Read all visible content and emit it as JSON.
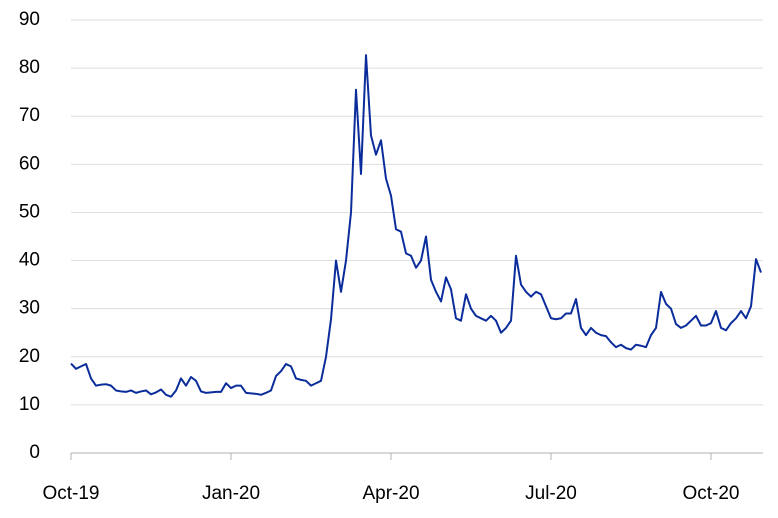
{
  "chart_data": {
    "type": "line",
    "categories": [
      "Oct-19",
      null,
      null,
      null,
      null,
      null,
      null,
      null,
      null,
      null,
      null,
      null,
      null,
      null,
      null,
      null,
      null,
      null,
      null,
      null,
      null,
      null,
      null,
      null,
      null,
      null,
      null,
      null,
      null,
      null,
      null,
      null,
      "Jan-20",
      null,
      null,
      null,
      null,
      null,
      null,
      null,
      null,
      null,
      null,
      null,
      null,
      null,
      null,
      null,
      null,
      null,
      null,
      null,
      null,
      null,
      null,
      null,
      null,
      null,
      null,
      null,
      null,
      null,
      null,
      null,
      "Apr-20",
      null,
      null,
      null,
      null,
      null,
      null,
      null,
      null,
      null,
      null,
      null,
      null,
      null,
      null,
      null,
      null,
      null,
      null,
      null,
      null,
      null,
      null,
      null,
      null,
      null,
      null,
      null,
      null,
      null,
      null,
      null,
      "Jul-20",
      null,
      null,
      null,
      null,
      null,
      null,
      null,
      null,
      null,
      null,
      null,
      null,
      null,
      null,
      null,
      null,
      null,
      null,
      null,
      null,
      null,
      null,
      null,
      null,
      null,
      null,
      null,
      null,
      null,
      null,
      null,
      "Oct-20",
      null,
      null,
      null,
      null,
      null,
      null,
      null,
      null,
      null,
      null
    ],
    "values": [
      18.6,
      17.5,
      18,
      18.5,
      15.5,
      14,
      14.2,
      14.3,
      14,
      13,
      12.8,
      12.7,
      13,
      12.5,
      12.8,
      13,
      12.2,
      12.6,
      13.2,
      12.1,
      11.7,
      13,
      15.5,
      14,
      15.8,
      15,
      12.8,
      12.5,
      12.6,
      12.7,
      12.7,
      14.5,
      13.5,
      14,
      14,
      12.5,
      12.4,
      12.3,
      12.1,
      12.5,
      13,
      16,
      17,
      18.5,
      18,
      15.5,
      15.2,
      15,
      14,
      14.5,
      15,
      20,
      27.8,
      40,
      33.5,
      40,
      50,
      75.5,
      58,
      82.7,
      66,
      62,
      65,
      57,
      53.5,
      46.5,
      46,
      41.5,
      41,
      38.5,
      40,
      45,
      36,
      33.5,
      31.5,
      36.5,
      34,
      28,
      27.5,
      33,
      30,
      28.5,
      28,
      27.5,
      28.5,
      27.5,
      25,
      26,
      27.5,
      41,
      35,
      33.5,
      32.5,
      33.5,
      33,
      30.5,
      28,
      27.8,
      28,
      29,
      29,
      32,
      26,
      24.5,
      26,
      25,
      24.5,
      24.3,
      23,
      22,
      22.5,
      21.8,
      21.5,
      22.5,
      22.3,
      22,
      24.5,
      26,
      33.5,
      31,
      30,
      26.8,
      26,
      26.5,
      27.5,
      28.5,
      26.5,
      26.5,
      27,
      29.5,
      26,
      25.5,
      27,
      28,
      29.5,
      28,
      30.5,
      40.3,
      37.5
    ],
    "color": "#0b2d9b",
    "ylim": [
      0,
      90
    ],
    "yticks": [
      0,
      10,
      20,
      30,
      40,
      50,
      60,
      70,
      80,
      90
    ],
    "grid": true
  }
}
